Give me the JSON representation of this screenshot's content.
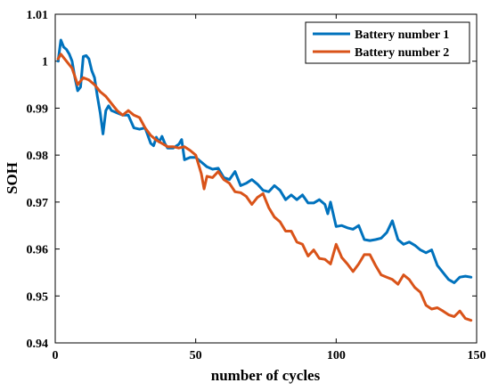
{
  "chart_data": {
    "type": "line",
    "title": "",
    "xlabel": "number of cycles",
    "ylabel": "SOH",
    "xlim": [
      0,
      150
    ],
    "ylim": [
      0.94,
      1.01
    ],
    "xticks": [
      0,
      50,
      100,
      150
    ],
    "yticks": [
      0.94,
      0.95,
      0.96,
      0.97,
      0.98,
      0.99,
      1,
      1.01
    ],
    "xtick_labels": [
      "0",
      "50",
      "100",
      "150"
    ],
    "ytick_labels": [
      "0.94",
      "0.95",
      "0.96",
      "0.97",
      "0.98",
      "0.99",
      "1",
      "1.01"
    ],
    "grid": false,
    "legend_position": "top-right",
    "series": [
      {
        "name": "Battery number 1",
        "color": "#0072BD",
        "x": [
          1,
          2,
          3,
          4,
          5,
          6,
          7,
          8,
          9,
          10,
          11,
          12,
          13,
          14,
          15,
          16,
          17,
          18,
          19,
          20,
          22,
          24,
          26,
          28,
          30,
          32,
          34,
          35,
          36,
          37,
          38,
          39,
          40,
          42,
          44,
          45,
          46,
          48,
          50,
          52,
          54,
          56,
          58,
          60,
          62,
          64,
          66,
          68,
          70,
          72,
          74,
          76,
          78,
          80,
          82,
          84,
          86,
          88,
          90,
          92,
          94,
          96,
          97,
          98,
          100,
          102,
          104,
          106,
          108,
          110,
          112,
          114,
          116,
          118,
          120,
          122,
          124,
          126,
          128,
          130,
          132,
          134,
          136,
          138,
          140,
          142,
          144,
          146,
          148
        ],
        "y": [
          1.0,
          1.0045,
          1.003,
          1.0025,
          1.0015,
          1.0,
          0.9965,
          0.9937,
          0.9945,
          1.001,
          1.0012,
          1.0005,
          0.998,
          0.9965,
          0.9925,
          0.989,
          0.9845,
          0.9895,
          0.9905,
          0.9895,
          0.989,
          0.9885,
          0.9885,
          0.9858,
          0.9855,
          0.9858,
          0.9825,
          0.982,
          0.9838,
          0.9828,
          0.984,
          0.9825,
          0.9815,
          0.9815,
          0.9823,
          0.9833,
          0.979,
          0.9795,
          0.9795,
          0.9785,
          0.9775,
          0.977,
          0.9772,
          0.9752,
          0.9748,
          0.9765,
          0.9735,
          0.974,
          0.9748,
          0.9738,
          0.9725,
          0.9722,
          0.9735,
          0.9725,
          0.9705,
          0.9715,
          0.9705,
          0.9715,
          0.9698,
          0.9698,
          0.9705,
          0.9695,
          0.9675,
          0.97,
          0.9648,
          0.965,
          0.9645,
          0.9642,
          0.965,
          0.962,
          0.9618,
          0.962,
          0.9623,
          0.9635,
          0.966,
          0.962,
          0.961,
          0.9615,
          0.9608,
          0.9598,
          0.9592,
          0.9598,
          0.9565,
          0.955,
          0.9535,
          0.9528,
          0.954,
          0.9542,
          0.954
        ]
      },
      {
        "name": "Battery number 2",
        "color": "#D95319",
        "x": [
          1,
          2,
          4,
          6,
          8,
          10,
          12,
          14,
          16,
          18,
          20,
          22,
          24,
          26,
          28,
          30,
          32,
          34,
          36,
          38,
          40,
          42,
          44,
          46,
          48,
          50,
          52,
          53,
          54,
          56,
          58,
          60,
          62,
          64,
          66,
          68,
          70,
          72,
          74,
          76,
          78,
          80,
          82,
          84,
          86,
          88,
          90,
          92,
          94,
          96,
          98,
          100,
          102,
          104,
          106,
          108,
          110,
          112,
          114,
          116,
          118,
          120,
          122,
          124,
          126,
          128,
          130,
          132,
          134,
          136,
          138,
          140,
          142,
          144,
          146,
          148
        ],
        "y": [
          1.0005,
          1.0015,
          1.0,
          0.9985,
          0.995,
          0.9965,
          0.996,
          0.995,
          0.9935,
          0.9925,
          0.991,
          0.9895,
          0.9885,
          0.9895,
          0.9885,
          0.988,
          0.9858,
          0.9842,
          0.9832,
          0.9825,
          0.9818,
          0.9818,
          0.9815,
          0.9818,
          0.981,
          0.98,
          0.976,
          0.9728,
          0.9755,
          0.9752,
          0.9765,
          0.9748,
          0.974,
          0.9722,
          0.972,
          0.9712,
          0.9695,
          0.971,
          0.9718,
          0.9688,
          0.9668,
          0.9658,
          0.9638,
          0.9638,
          0.9615,
          0.961,
          0.9585,
          0.9598,
          0.958,
          0.9578,
          0.9568,
          0.961,
          0.9582,
          0.9568,
          0.9552,
          0.9568,
          0.9588,
          0.9588,
          0.9565,
          0.9545,
          0.954,
          0.9535,
          0.9525,
          0.9545,
          0.9535,
          0.9518,
          0.9508,
          0.948,
          0.9472,
          0.9475,
          0.9468,
          0.946,
          0.9456,
          0.9468,
          0.9452,
          0.9448
        ]
      }
    ]
  }
}
